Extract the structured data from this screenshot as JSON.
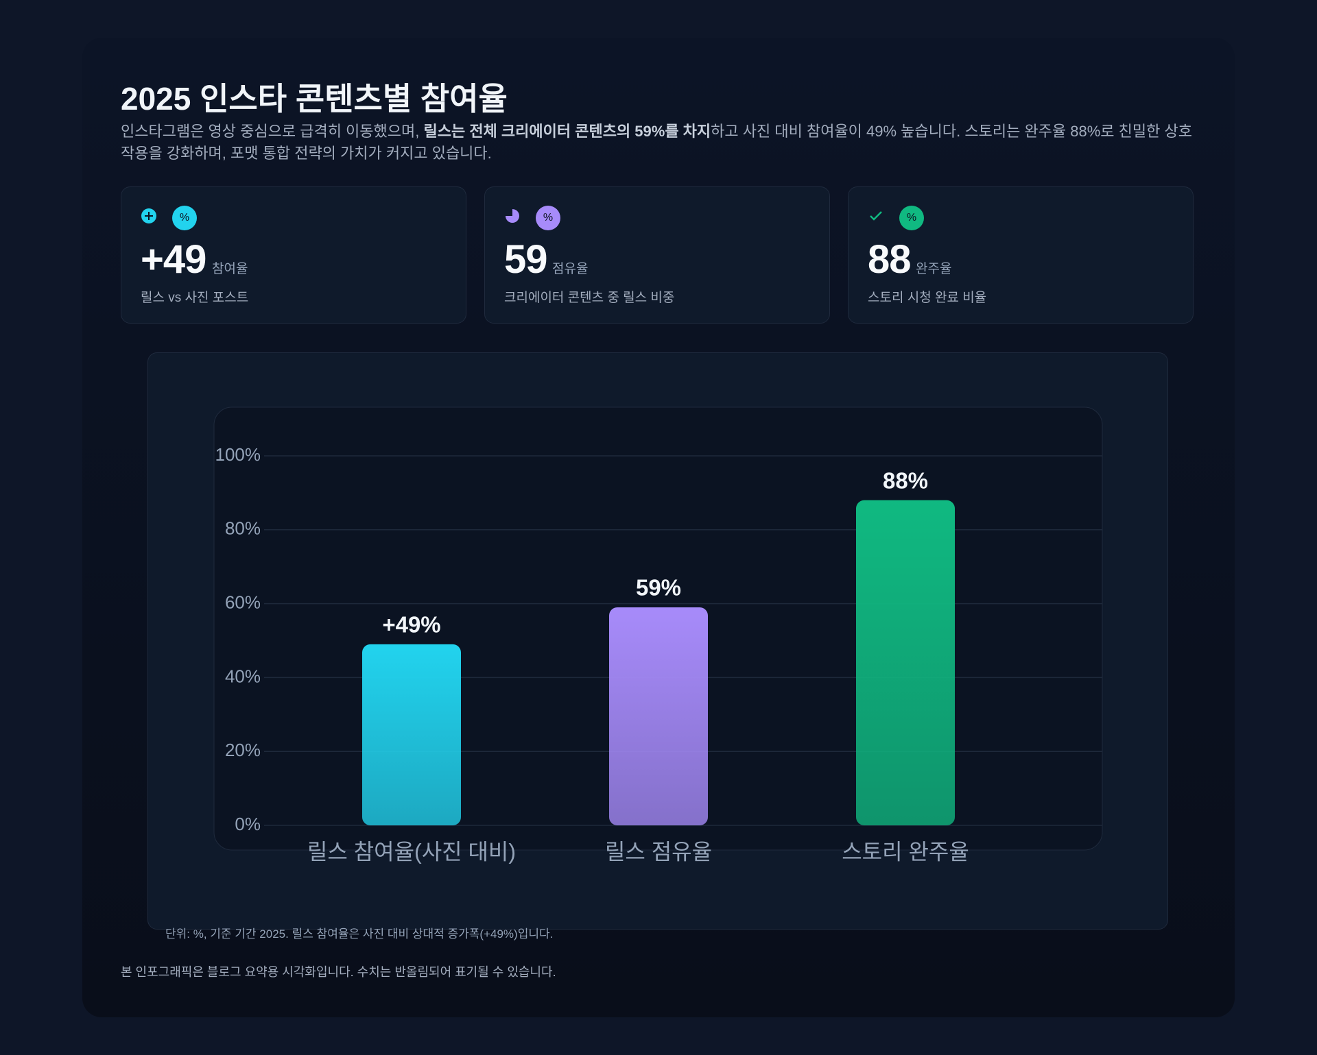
{
  "header": {
    "title": "2025 인스타 콘텐츠별 참여율",
    "description": {
      "before": "인스타그램은 영상 중심으로 급격히 이동했으며, ",
      "bold": "릴스는 전체 크리에이터 콘텐츠의 59%를 차지",
      "after": "하고 사진 대비 참여율이 49% 높습니다. 스토리는 완주율 88%로 친밀한 상호작용을 강화하며, 포맷 통합 전략의 가치가 커지고 있습니다."
    }
  },
  "cards": [
    {
      "badge": "%",
      "value": "+49",
      "unit": "참여율",
      "caption": "릴스 vs 사진 포스트"
    },
    {
      "badge": "%",
      "value": "59",
      "unit": "점유율",
      "caption": "크리에이터 콘텐츠 중 릴스 비중"
    },
    {
      "badge": "%",
      "value": "88",
      "unit": "완주율",
      "caption": "스토리 시청 완료 비율"
    }
  ],
  "chart_data": {
    "type": "bar",
    "categories": [
      "릴스 참여율(사진 대비)",
      "릴스 점유율",
      "스토리 완주율"
    ],
    "values": [
      49,
      59,
      88
    ],
    "value_labels": [
      "+49%",
      "59%",
      "88%"
    ],
    "colors": [
      "#22d3ee",
      "#a78bfa",
      "#10b981"
    ],
    "ylim": [
      0,
      100
    ],
    "yticks": [
      {
        "value": 0,
        "label": "0%"
      },
      {
        "value": 20,
        "label": "20%"
      },
      {
        "value": 40,
        "label": "40%"
      },
      {
        "value": 60,
        "label": "60%"
      },
      {
        "value": 80,
        "label": "80%"
      },
      {
        "value": 100,
        "label": "100%"
      }
    ],
    "grid": true,
    "note": "단위: %, 기준 기간 2025. 릴스 참여율은 사진 대비 상대적 증가폭(+49%)입니다."
  },
  "footer": "본 인포그래픽은 블로그 요약용 시각화입니다. 수치는 반올림되어 표기될 수 있습니다."
}
